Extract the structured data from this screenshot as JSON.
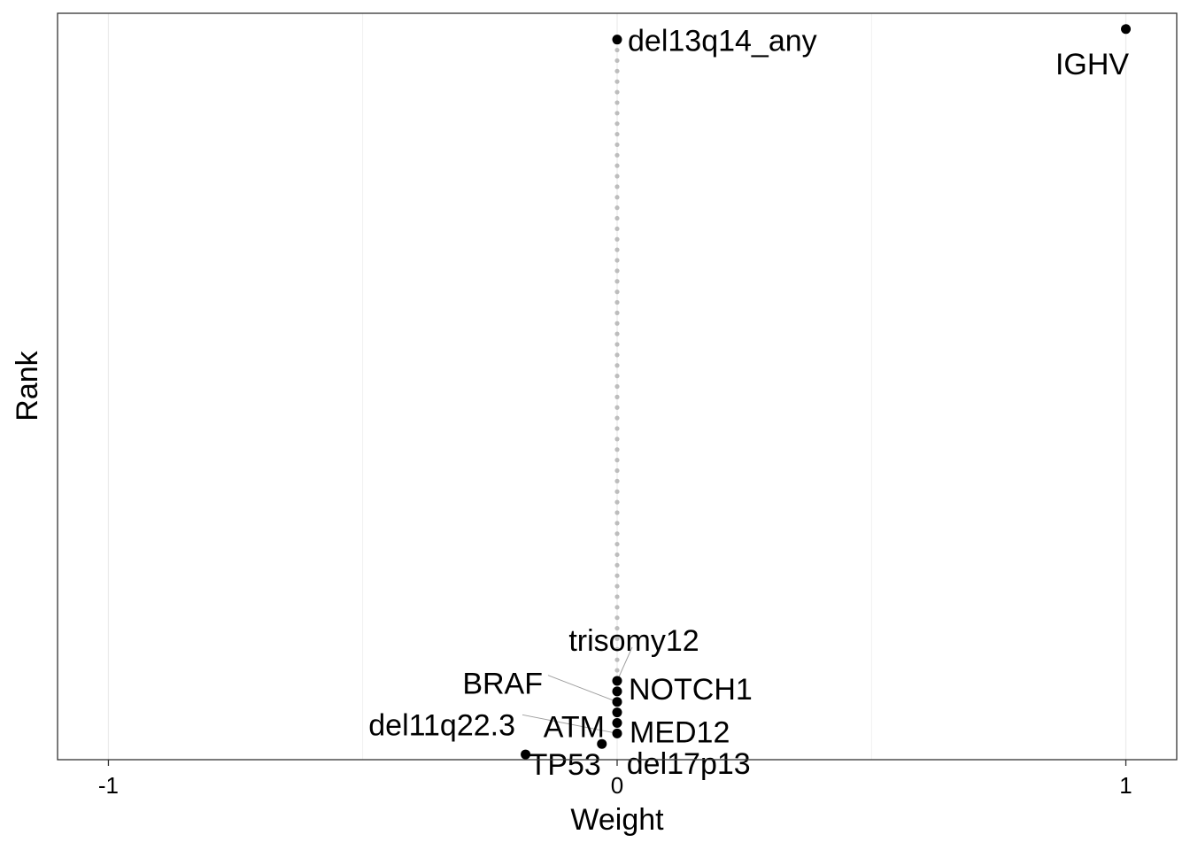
{
  "chart_data": {
    "type": "scatter",
    "xlabel": "Weight",
    "ylabel": "Rank",
    "xlim": [
      -1.1,
      1.1
    ],
    "ylim": [
      0.5,
      71.5
    ],
    "x_ticks": [
      -1,
      0,
      1
    ],
    "x_tick_labels": [
      "-1",
      "0",
      "1"
    ],
    "grid": true,
    "reference_line_color": "#bdbdbd",
    "point_color": "#000000",
    "points": [
      {
        "rank": 1,
        "weight": -0.18,
        "label": "TP53"
      },
      {
        "rank": 2,
        "weight": -0.03,
        "label": "del17p13"
      },
      {
        "rank": 3,
        "weight": 0.0,
        "label": "del11q22.3"
      },
      {
        "rank": 4,
        "weight": 0.0,
        "label": "MED12"
      },
      {
        "rank": 5,
        "weight": 0.0,
        "label": "ATM"
      },
      {
        "rank": 6,
        "weight": 0.0,
        "label": "BRAF"
      },
      {
        "rank": 7,
        "weight": 0.0,
        "label": "NOTCH1"
      },
      {
        "rank": 8,
        "weight": 0.0,
        "label": "trisomy12"
      },
      {
        "rank": 69,
        "weight": 0.0,
        "label": "del13q14_any"
      },
      {
        "rank": 70,
        "weight": 1.0,
        "label": "IGHV"
      }
    ],
    "unlabeled_ranks_at_zero": [
      9,
      68
    ]
  }
}
